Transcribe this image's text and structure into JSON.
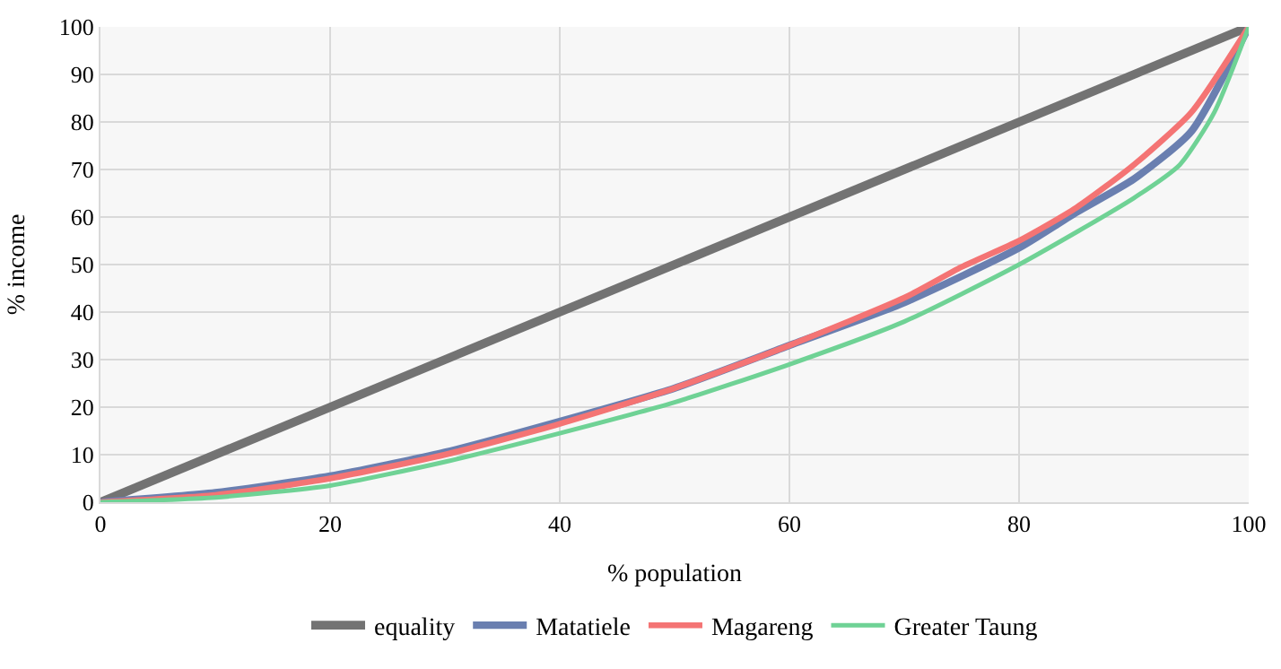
{
  "chart_data": {
    "type": "line",
    "xlabel": "% population",
    "ylabel": "% income",
    "xlim": [
      0,
      100
    ],
    "ylim": [
      0,
      100
    ],
    "xticks": [
      0,
      20,
      40,
      60,
      80,
      100
    ],
    "yticks": [
      0,
      10,
      20,
      30,
      40,
      50,
      60,
      70,
      80,
      90,
      100
    ],
    "grid": true,
    "legend": "bottom",
    "marker": "none",
    "line_style": "solid",
    "series": [
      {
        "name": "equality",
        "color": "#737373",
        "x": [
          0,
          100
        ],
        "values": [
          0,
          100
        ]
      },
      {
        "name": "Matatiele",
        "color": "#6a7fb0",
        "x": [
          0,
          10,
          20,
          30,
          40,
          50,
          60,
          70,
          80,
          85,
          90,
          95,
          100
        ],
        "values": [
          0,
          2,
          5.5,
          10.5,
          17,
          24,
          33,
          42,
          53.5,
          61,
          68,
          78,
          100
        ]
      },
      {
        "name": "Magareng",
        "color": "#f47474",
        "x": [
          0,
          10,
          20,
          30,
          40,
          50,
          60,
          70,
          75,
          80,
          85,
          90,
          95,
          100
        ],
        "values": [
          0,
          1.5,
          5,
          10,
          16.5,
          24,
          33,
          43,
          49.5,
          55,
          62,
          71,
          82,
          100
        ]
      },
      {
        "name": "Greater Taung",
        "color": "#6fd295",
        "x": [
          0,
          10,
          20,
          30,
          40,
          50,
          60,
          70,
          80,
          90,
          94,
          97,
          100
        ],
        "values": [
          0,
          1,
          3.5,
          8.5,
          14.5,
          21,
          29,
          38,
          50,
          64,
          71,
          82,
          100
        ]
      }
    ]
  }
}
